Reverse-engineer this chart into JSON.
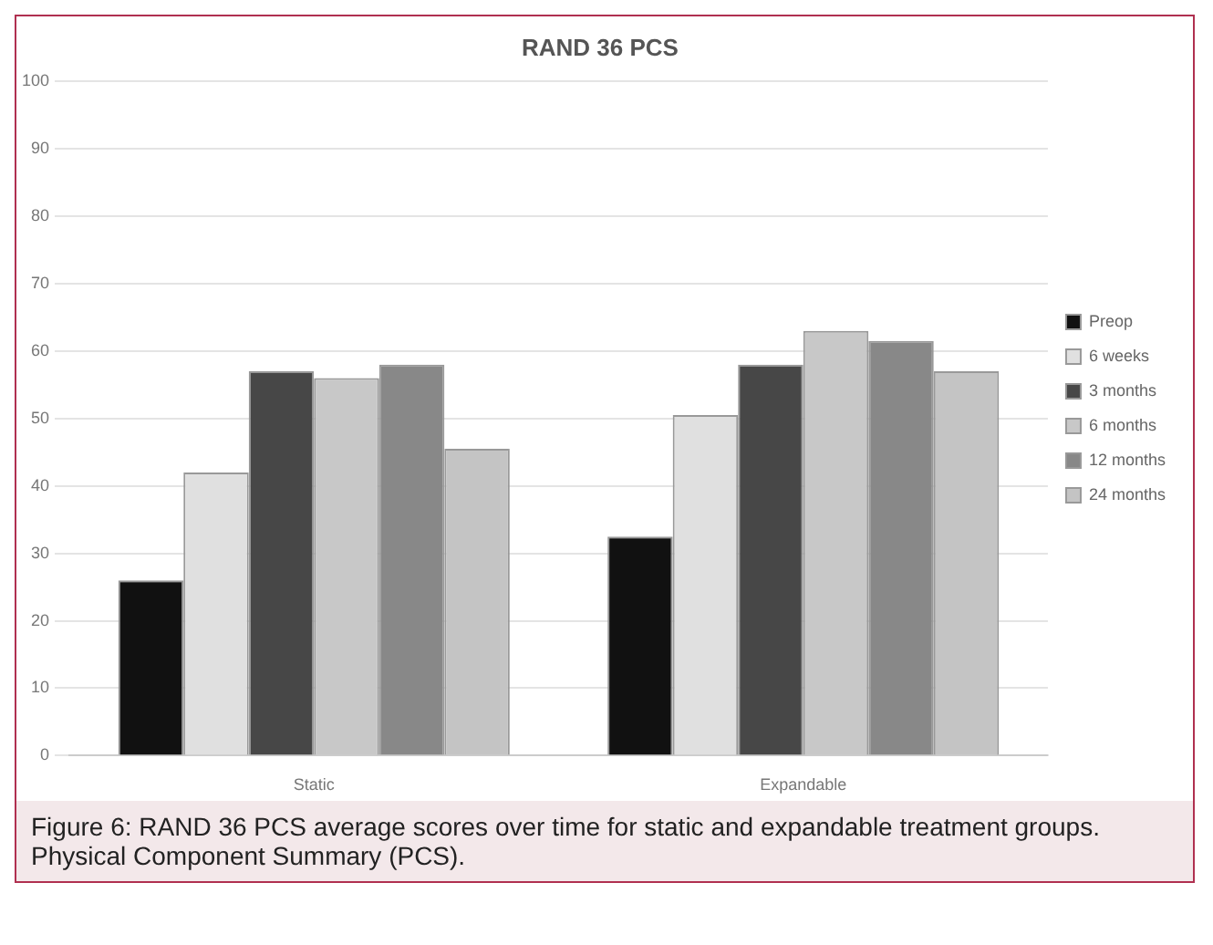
{
  "chart_data": {
    "type": "bar",
    "title": "RAND 36 PCS",
    "categories": [
      "Static",
      "Expandable"
    ],
    "series": [
      {
        "name": "Preop",
        "color": "#111111",
        "values": [
          26,
          32.5
        ]
      },
      {
        "name": "6 weeks",
        "color": "#e0e0e0",
        "values": [
          42,
          50.5
        ]
      },
      {
        "name": "3 months",
        "color": "#474747",
        "values": [
          57,
          58
        ]
      },
      {
        "name": "6 months",
        "color": "#c8c8c8",
        "values": [
          56,
          63
        ]
      },
      {
        "name": "12 months",
        "color": "#888888",
        "values": [
          58,
          61.5
        ]
      },
      {
        "name": "24 months",
        "color": "#c4c4c4",
        "values": [
          45.5,
          57
        ]
      }
    ],
    "ylim": [
      0,
      100
    ],
    "yticks": [
      0,
      10,
      20,
      30,
      40,
      50,
      60,
      70,
      80,
      90,
      100
    ],
    "grid": "y",
    "legend": "right",
    "annotations": [
      "Figure 6: RAND 36 PCS average scores over time for static and expandable treatment groups. Physical Component Summary (PCS)."
    ]
  }
}
